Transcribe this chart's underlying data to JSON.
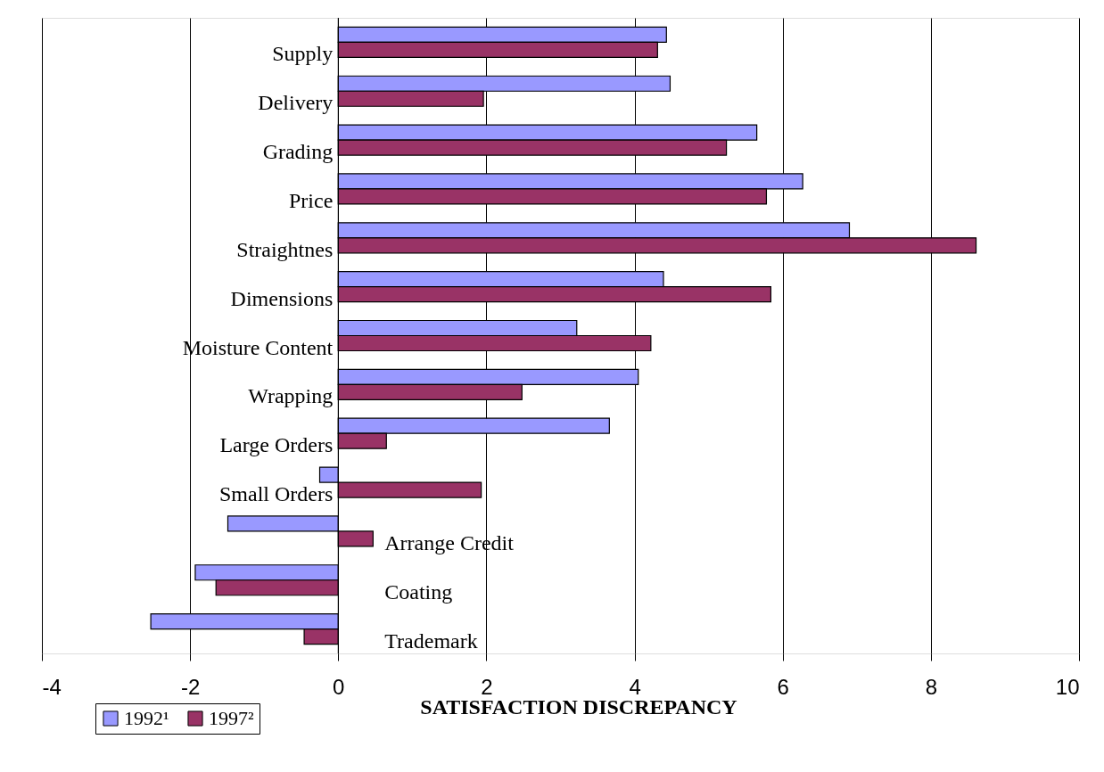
{
  "chart_data": {
    "type": "bar",
    "orientation": "horizontal",
    "xlabel": "SATISFACTION DISCREPANCY",
    "categories": [
      "Supply",
      "Delivery",
      "Grading",
      "Price",
      "Straightnes",
      "Dimensions",
      "Moisture Content",
      "Wrapping",
      "Large Orders",
      "Small Orders",
      "Arrange Credit",
      "Coating",
      "Trademark"
    ],
    "series": [
      {
        "name": "1992¹",
        "color": "#9999ff",
        "values": [
          4.43,
          4.48,
          5.65,
          6.27,
          6.9,
          4.39,
          3.22,
          4.05,
          3.66,
          -0.25,
          -1.49,
          -1.93,
          -2.53
        ]
      },
      {
        "name": "1997²",
        "color": "#993366",
        "values": [
          4.31,
          1.96,
          5.24,
          5.78,
          8.61,
          5.84,
          4.22,
          2.48,
          0.65,
          1.93,
          0.47,
          -1.65,
          -0.46
        ]
      }
    ],
    "xlim": [
      -4,
      10
    ],
    "xticks": [
      -4,
      -2,
      0,
      2,
      4,
      6,
      8,
      10
    ],
    "grid": "x",
    "legend": "bottom left"
  }
}
